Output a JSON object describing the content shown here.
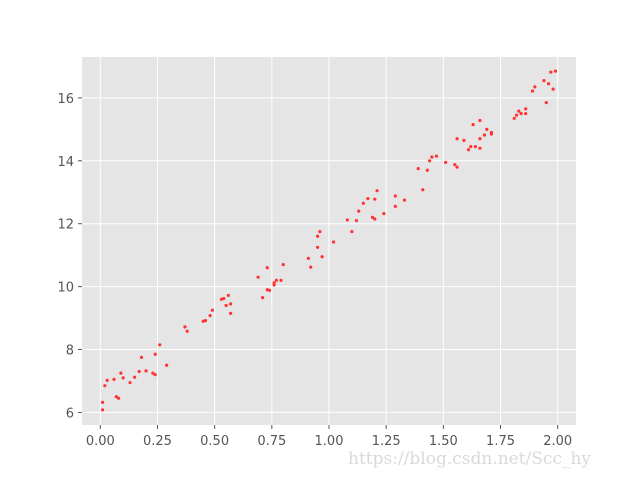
{
  "watermark": "https://blog.csdn.net/Scc_hy",
  "colors": {
    "plot_bg": "#e5e5e5",
    "grid": "#ffffff",
    "point": "#ff3333",
    "tick_text": "#555555",
    "watermark": "#d9d9d9"
  },
  "chart_data": {
    "type": "scatter",
    "title": "",
    "xlabel": "",
    "ylabel": "",
    "xlim": [
      -0.08,
      2.08
    ],
    "ylim": [
      5.6,
      17.3
    ],
    "grid": true,
    "xticks": [
      0.0,
      0.25,
      0.5,
      0.75,
      1.0,
      1.25,
      1.5,
      1.75,
      2.0
    ],
    "xtick_labels": [
      "0.00",
      "0.25",
      "0.50",
      "0.75",
      "1.00",
      "1.25",
      "1.50",
      "1.75",
      "2.00"
    ],
    "yticks": [
      6,
      8,
      10,
      12,
      14,
      16
    ],
    "ytick_labels": [
      "6",
      "8",
      "10",
      "12",
      "14",
      "16"
    ],
    "series": [
      {
        "color": "#ff3333",
        "points": [
          [
            0.01,
            6.08
          ],
          [
            0.01,
            6.32
          ],
          [
            0.02,
            6.85
          ],
          [
            0.03,
            7.02
          ],
          [
            0.06,
            7.05
          ],
          [
            0.07,
            6.5
          ],
          [
            0.08,
            6.45
          ],
          [
            0.09,
            7.25
          ],
          [
            0.1,
            7.1
          ],
          [
            0.13,
            6.95
          ],
          [
            0.15,
            7.12
          ],
          [
            0.17,
            7.3
          ],
          [
            0.18,
            7.75
          ],
          [
            0.2,
            7.32
          ],
          [
            0.23,
            7.25
          ],
          [
            0.24,
            7.2
          ],
          [
            0.24,
            7.85
          ],
          [
            0.26,
            8.15
          ],
          [
            0.29,
            7.5
          ],
          [
            0.37,
            8.72
          ],
          [
            0.38,
            8.58
          ],
          [
            0.45,
            8.9
          ],
          [
            0.46,
            8.92
          ],
          [
            0.48,
            9.08
          ],
          [
            0.49,
            9.25
          ],
          [
            0.53,
            9.6
          ],
          [
            0.54,
            9.62
          ],
          [
            0.55,
            9.4
          ],
          [
            0.56,
            9.72
          ],
          [
            0.57,
            9.15
          ],
          [
            0.57,
            9.45
          ],
          [
            0.69,
            10.3
          ],
          [
            0.71,
            9.65
          ],
          [
            0.73,
            9.9
          ],
          [
            0.73,
            10.6
          ],
          [
            0.74,
            9.88
          ],
          [
            0.76,
            10.05
          ],
          [
            0.76,
            10.12
          ],
          [
            0.77,
            10.2
          ],
          [
            0.79,
            10.2
          ],
          [
            0.8,
            10.7
          ],
          [
            0.91,
            10.9
          ],
          [
            0.92,
            10.62
          ],
          [
            0.95,
            11.25
          ],
          [
            0.95,
            11.6
          ],
          [
            0.96,
            11.75
          ],
          [
            0.97,
            10.95
          ],
          [
            1.02,
            11.42
          ],
          [
            1.08,
            12.12
          ],
          [
            1.1,
            11.75
          ],
          [
            1.12,
            12.1
          ],
          [
            1.13,
            12.4
          ],
          [
            1.15,
            12.65
          ],
          [
            1.17,
            12.8
          ],
          [
            1.19,
            12.2
          ],
          [
            1.2,
            12.78
          ],
          [
            1.2,
            12.15
          ],
          [
            1.21,
            13.05
          ],
          [
            1.24,
            12.32
          ],
          [
            1.29,
            12.55
          ],
          [
            1.29,
            12.88
          ],
          [
            1.33,
            12.75
          ],
          [
            1.39,
            13.75
          ],
          [
            1.41,
            13.08
          ],
          [
            1.43,
            13.7
          ],
          [
            1.44,
            14.0
          ],
          [
            1.45,
            14.12
          ],
          [
            1.47,
            14.15
          ],
          [
            1.51,
            13.95
          ],
          [
            1.55,
            13.88
          ],
          [
            1.56,
            13.8
          ],
          [
            1.56,
            14.7
          ],
          [
            1.59,
            14.65
          ],
          [
            1.61,
            14.35
          ],
          [
            1.62,
            14.45
          ],
          [
            1.63,
            15.15
          ],
          [
            1.64,
            14.45
          ],
          [
            1.66,
            14.7
          ],
          [
            1.66,
            14.4
          ],
          [
            1.66,
            15.28
          ],
          [
            1.68,
            14.82
          ],
          [
            1.69,
            15.0
          ],
          [
            1.71,
            14.85
          ],
          [
            1.71,
            14.9
          ],
          [
            1.81,
            15.35
          ],
          [
            1.82,
            15.45
          ],
          [
            1.83,
            15.58
          ],
          [
            1.84,
            15.5
          ],
          [
            1.86,
            15.5
          ],
          [
            1.86,
            15.65
          ],
          [
            1.89,
            16.22
          ],
          [
            1.9,
            16.35
          ],
          [
            1.94,
            16.55
          ],
          [
            1.95,
            15.85
          ],
          [
            1.96,
            16.45
          ],
          [
            1.97,
            16.82
          ],
          [
            1.98,
            16.28
          ],
          [
            1.99,
            16.85
          ]
        ]
      }
    ]
  }
}
